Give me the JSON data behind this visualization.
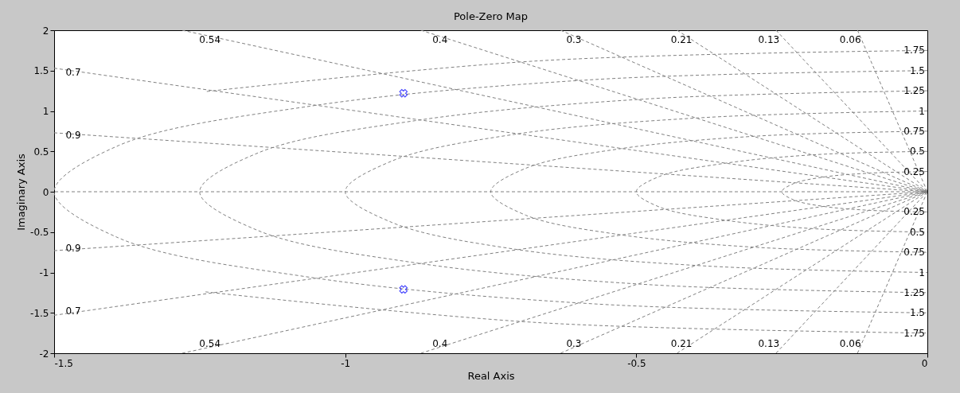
{
  "chart_data": {
    "type": "scatter",
    "title": "Pole-Zero Map",
    "xlabel": "Real Axis",
    "ylabel": "Imaginary Axis",
    "xlim": [
      -1.5,
      0
    ],
    "ylim": [
      -2,
      2
    ],
    "xticks": [
      -1.5,
      -1,
      -0.5,
      0
    ],
    "yticks": [
      -2,
      -1.5,
      -1,
      -0.5,
      0,
      0.5,
      1,
      1.5,
      2
    ],
    "grid": false,
    "series": [
      {
        "type": "line",
        "line_style": "dashed",
        "color": "#808080",
        "x": [
          -0.12,
          0
        ],
        "values": [
          2,
          0
        ]
      },
      {
        "type": "line",
        "line_style": "dashed",
        "color": "#808080",
        "x": [
          -0.12,
          0
        ],
        "values": [
          -2,
          0
        ]
      },
      {
        "type": "line",
        "line_style": "dashed",
        "color": "#808080",
        "x": [
          -0.26,
          0
        ],
        "values": [
          2,
          0
        ]
      },
      {
        "type": "line",
        "line_style": "dashed",
        "color": "#808080",
        "x": [
          -0.26,
          0
        ],
        "values": [
          -2,
          0
        ]
      },
      {
        "type": "line",
        "line_style": "dashed",
        "color": "#808080",
        "x": [
          -0.43,
          0
        ],
        "values": [
          2,
          0
        ]
      },
      {
        "type": "line",
        "line_style": "dashed",
        "color": "#808080",
        "x": [
          -0.43,
          0
        ],
        "values": [
          -2,
          0
        ]
      },
      {
        "type": "line",
        "line_style": "dashed",
        "color": "#808080",
        "x": [
          -0.63,
          0
        ],
        "values": [
          2,
          0
        ]
      },
      {
        "type": "line",
        "line_style": "dashed",
        "color": "#808080",
        "x": [
          -0.63,
          0
        ],
        "values": [
          -2,
          0
        ]
      },
      {
        "type": "line",
        "line_style": "dashed",
        "color": "#808080",
        "x": [
          -0.87,
          0
        ],
        "values": [
          2,
          0
        ]
      },
      {
        "type": "line",
        "line_style": "dashed",
        "color": "#808080",
        "x": [
          -0.87,
          0
        ],
        "values": [
          -2,
          0
        ]
      },
      {
        "type": "line",
        "line_style": "dashed",
        "color": "#808080",
        "x": [
          -1.28,
          0
        ],
        "values": [
          2,
          0
        ]
      },
      {
        "type": "line",
        "line_style": "dashed",
        "color": "#808080",
        "x": [
          -1.28,
          0
        ],
        "values": [
          -2,
          0
        ]
      },
      {
        "type": "line",
        "line_style": "dashed",
        "color": "#808080",
        "x": [
          -1.5,
          0
        ],
        "values": [
          1.53,
          0
        ]
      },
      {
        "type": "line",
        "line_style": "dashed",
        "color": "#808080",
        "x": [
          -1.5,
          0
        ],
        "values": [
          -1.53,
          0
        ]
      },
      {
        "type": "line",
        "line_style": "dashed",
        "color": "#808080",
        "x": [
          -1.5,
          0
        ],
        "values": [
          0.73,
          0
        ]
      },
      {
        "type": "line",
        "line_style": "dashed",
        "color": "#808080",
        "x": [
          -1.5,
          0
        ],
        "values": [
          -0.73,
          0
        ]
      },
      {
        "type": "line",
        "line_style": "dashed",
        "color": "#808080",
        "x": [
          0,
          -0.1,
          -0.18,
          -0.23,
          -0.25,
          -0.23,
          -0.18,
          -0.1,
          0
        ],
        "values": [
          0.25,
          0.23,
          0.18,
          0.1,
          0,
          -0.1,
          -0.18,
          -0.23,
          -0.25
        ]
      },
      {
        "type": "line",
        "line_style": "dashed",
        "color": "#808080",
        "x": [
          0,
          -0.19,
          -0.35,
          -0.46,
          -0.5,
          -0.46,
          -0.35,
          -0.19,
          0
        ],
        "values": [
          0.5,
          0.46,
          0.35,
          0.19,
          0,
          -0.19,
          -0.35,
          -0.46,
          -0.5
        ]
      },
      {
        "type": "line",
        "line_style": "dashed",
        "color": "#808080",
        "x": [
          0,
          -0.29,
          -0.53,
          -0.69,
          -0.75,
          -0.69,
          -0.53,
          -0.29,
          0
        ],
        "values": [
          0.75,
          0.69,
          0.53,
          0.29,
          0,
          -0.29,
          -0.53,
          -0.69,
          -0.75
        ]
      },
      {
        "type": "line",
        "line_style": "dashed",
        "color": "#808080",
        "x": [
          0,
          -0.38,
          -0.71,
          -0.92,
          -1,
          -0.92,
          -0.71,
          -0.38,
          0
        ],
        "values": [
          1,
          0.92,
          0.71,
          0.38,
          0,
          -0.38,
          -0.71,
          -0.92,
          -1
        ]
      },
      {
        "type": "line",
        "line_style": "dashed",
        "color": "#808080",
        "x": [
          0,
          -0.48,
          -0.88,
          -1.15,
          -1.25,
          -1.15,
          -0.88,
          -0.48,
          0
        ],
        "values": [
          1.25,
          1.15,
          0.88,
          0.48,
          0,
          -0.48,
          -0.88,
          -1.15,
          -1.25
        ]
      },
      {
        "type": "line",
        "line_style": "dashed",
        "color": "#808080",
        "x": [
          0,
          -0.57,
          -1.06,
          -1.39,
          -1.5,
          -1.39,
          -1.06,
          -0.57,
          0
        ],
        "values": [
          1.5,
          1.39,
          1.06,
          0.57,
          0,
          -0.57,
          -1.06,
          -1.39,
          -1.5
        ]
      },
      {
        "type": "line",
        "line_style": "dashed",
        "color": "#808080",
        "x": [
          0,
          -0.67,
          -1.24,
          null,
          null,
          null,
          -1.24,
          -0.67,
          0
        ],
        "values": [
          1.75,
          1.62,
          1.24,
          null,
          null,
          null,
          -1.24,
          -1.62,
          -1.75
        ]
      },
      {
        "marker": "cross",
        "color": "#0000ff",
        "x": [
          -0.9,
          -0.9
        ],
        "values": [
          1.22,
          -1.21
        ]
      }
    ],
    "ref_lines": [
      {
        "axis": "y",
        "value": 0,
        "color": "#808080",
        "line_style": "dashed"
      }
    ],
    "annotations": [
      {
        "text": "0.54",
        "x": -1.21,
        "y": 1.88
      },
      {
        "text": "0.4",
        "x": -0.82,
        "y": 1.88
      },
      {
        "text": "0.3",
        "x": -0.59,
        "y": 1.88
      },
      {
        "text": "0.21",
        "x": -0.4,
        "y": 1.88
      },
      {
        "text": "0.13",
        "x": -0.25,
        "y": 1.88
      },
      {
        "text": "0.06",
        "x": -0.11,
        "y": 1.88
      },
      {
        "text": "0.7",
        "x": -1.45,
        "y": 1.48
      },
      {
        "text": "0.9",
        "x": -1.45,
        "y": 0.7
      },
      {
        "text": "0.9",
        "x": -1.45,
        "y": -0.7
      },
      {
        "text": "0.7",
        "x": -1.45,
        "y": -1.48
      },
      {
        "text": "0.54",
        "x": -1.21,
        "y": -1.88
      },
      {
        "text": "0.4",
        "x": -0.82,
        "y": -1.88
      },
      {
        "text": "0.3",
        "x": -0.59,
        "y": -1.88
      },
      {
        "text": "0.21",
        "x": -0.4,
        "y": -1.88
      },
      {
        "text": "0.13",
        "x": -0.25,
        "y": -1.88
      },
      {
        "text": "0.06",
        "x": -0.11,
        "y": -1.88
      },
      {
        "text": "1.75",
        "x": 0,
        "y": 1.75
      },
      {
        "text": "1.5",
        "x": 0,
        "y": 1.5
      },
      {
        "text": "1.25",
        "x": 0,
        "y": 1.25
      },
      {
        "text": "1",
        "x": 0,
        "y": 1
      },
      {
        "text": "0.75",
        "x": 0,
        "y": 0.75
      },
      {
        "text": "0.5",
        "x": 0,
        "y": 0.5
      },
      {
        "text": "0.25",
        "x": 0,
        "y": 0.25
      },
      {
        "text": "0.25",
        "x": 0,
        "y": -0.25
      },
      {
        "text": "0.5",
        "x": 0,
        "y": -0.5
      },
      {
        "text": "0.75",
        "x": 0,
        "y": -0.75
      },
      {
        "text": "1",
        "x": 0,
        "y": -1
      },
      {
        "text": "1.25",
        "x": 0,
        "y": -1.25
      },
      {
        "text": "1.5",
        "x": 0,
        "y": -1.5
      },
      {
        "text": "1.75",
        "x": 0,
        "y": -1.75
      }
    ]
  }
}
